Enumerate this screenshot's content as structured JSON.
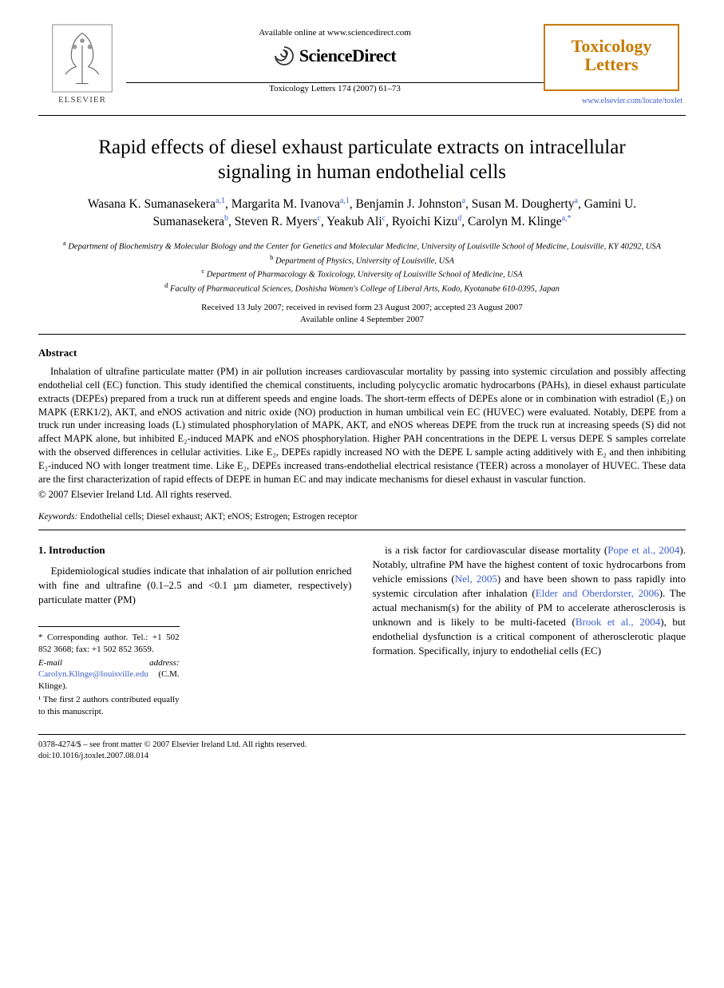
{
  "header": {
    "available_online": "Available online at www.sciencedirect.com",
    "sciencedirect_label": "ScienceDirect",
    "elsevier_label": "ELSEVIER",
    "citation": "Toxicology Letters 174 (2007) 61–73",
    "journal_name_line1": "Toxicology",
    "journal_name_line2": "Letters",
    "journal_url": "www.elsevier.com/locate/toxlet",
    "colors": {
      "journal_border": "#c77a00",
      "journal_text": "#c77a00",
      "link": "#3b5ecb",
      "text": "#000000",
      "background": "#ffffff"
    }
  },
  "article": {
    "title": "Rapid effects of diesel exhaust particulate extracts on intracellular signaling in human endothelial cells",
    "authors_html": "Wasana K. Sumanasekera<span class='sup'>a,1</span>, Margarita M. Ivanova<span class='sup'>a,1</span>, Benjamin J. Johnston<span class='sup'>a</span>, Susan M. Dougherty<span class='sup'>a</span>, Gamini U. Sumanasekera<span class='sup'>b</span>, Steven R. Myers<span class='sup'>c</span>, Yeakub Ali<span class='sup'>c</span>, Ryoichi Kizu<span class='sup'>d</span>, Carolyn M. Klinge<span class='sup'>a,*</span>",
    "affiliations": [
      {
        "sup": "a",
        "text": "Department of Biochemistry & Molecular Biology and the Center for Genetics and Molecular Medicine, University of Louisville School of Medicine, Louisville, KY 40292, USA"
      },
      {
        "sup": "b",
        "text": "Department of Physics, University of Louisville, USA"
      },
      {
        "sup": "c",
        "text": "Department of Pharmacology & Toxicology, University of Louisville School of Medicine, USA"
      },
      {
        "sup": "d",
        "text": "Faculty of Pharmaceutical Sciences, Doshisha Women's College of Liberal Arts, Kodo, Kyotanabe 610-0395, Japan"
      }
    ],
    "dates_line1": "Received 13 July 2007; received in revised form 23 August 2007; accepted 23 August 2007",
    "dates_line2": "Available online 4 September 2007"
  },
  "abstract": {
    "heading": "Abstract",
    "body": "Inhalation of ultrafine particulate matter (PM) in air pollution increases cardiovascular mortality by passing into systemic circulation and possibly affecting endothelial cell (EC) function. This study identified the chemical constituents, including polycyclic aromatic hydrocarbons (PAHs), in diesel exhaust particulate extracts (DEPEs) prepared from a truck run at different speeds and engine loads. The short-term effects of DEPEs alone or in combination with estradiol (E₂) on MAPK (ERK1/2), AKT, and eNOS activation and nitric oxide (NO) production in human umbilical vein EC (HUVEC) were evaluated. Notably, DEPE from a truck run under increasing loads (L) stimulated phosphorylation of MAPK, AKT, and eNOS whereas DEPE from the truck run at increasing speeds (S) did not affect MAPK alone, but inhibited E₂-induced MAPK and eNOS phosphorylation. Higher PAH concentrations in the DEPE L versus DEPE S samples correlate with the observed differences in cellular activities. Like E₂, DEPEs rapidly increased NO with the DEPE L sample acting additively with E₂ and then inhibiting E₂-induced NO with longer treatment time. Like E₂, DEPEs increased trans-endothelial electrical resistance (TEER) across a monolayer of HUVEC. These data are the first characterization of rapid effects of DEPE in human EC and may indicate mechanisms for diesel exhaust in vascular function.",
    "copyright": "© 2007 Elsevier Ireland Ltd. All rights reserved."
  },
  "keywords": {
    "label": "Keywords:",
    "list": "Endothelial cells; Diesel exhaust; AKT; eNOS; Estrogen; Estrogen receptor"
  },
  "intro": {
    "heading": "1.  Introduction",
    "col1": "Epidemiological studies indicate that inhalation of air pollution enriched with fine and ultrafine (0.1–2.5 and <0.1 µm diameter, respectively) particulate matter (PM)",
    "col2_parts": [
      {
        "text": "is a risk factor for cardiovascular disease mortality ("
      },
      {
        "link": "Pope et al., 2004"
      },
      {
        "text": "). Notably, ultrafine PM have the highest content of toxic hydrocarbons from vehicle emissions ("
      },
      {
        "link": "Nel, 2005"
      },
      {
        "text": ") and have been shown to pass rapidly into systemic circulation after inhalation ("
      },
      {
        "link": "Elder and Oberdorster, 2006"
      },
      {
        "text": "). The actual mechanism(s) for the ability of PM to accelerate atherosclerosis is unknown and is likely to be multi-faceted ("
      },
      {
        "link": "Brook et al., 2004"
      },
      {
        "text": "), but endothelial dysfunction is a critical component of atherosclerotic plaque formation. Specifically, injury to endothelial cells (EC)"
      }
    ]
  },
  "footnotes": {
    "corr": "* Corresponding author. Tel.: +1 502 852 3668; fax: +1 502 852 3659.",
    "email_label": "E-mail address:",
    "email": "Carolyn.Klinge@louisville.edu",
    "email_suffix": "(C.M. Klinge).",
    "note1": "¹ The first 2 authors contributed equally to this manuscript."
  },
  "footer": {
    "line1": "0378-4274/$ – see front matter © 2007 Elsevier Ireland Ltd. All rights reserved.",
    "line2": "doi:10.1016/j.toxlet.2007.08.014"
  }
}
